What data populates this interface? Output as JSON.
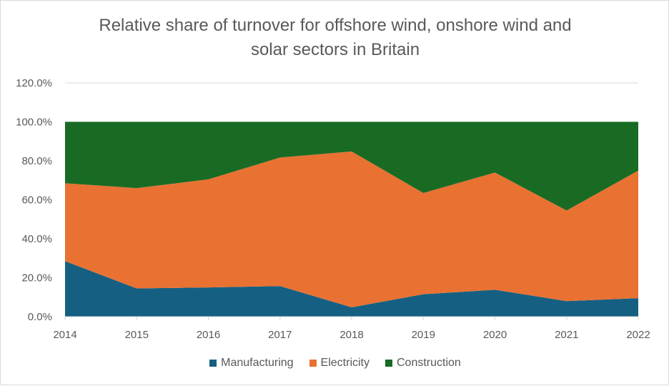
{
  "chart_data": {
    "type": "area",
    "stacked": true,
    "title_lines": [
      "Relative share of turnover for offshore wind, onshore wind and",
      "solar sectors in Britain"
    ],
    "title": "Relative share of turnover for offshore wind, onshore wind and solar sectors in Britain",
    "categories": [
      "2014",
      "2015",
      "2016",
      "2017",
      "2018",
      "2019",
      "2020",
      "2021",
      "2022"
    ],
    "series": [
      {
        "name": "Manufacturing",
        "color": "#156082",
        "values": [
          28.5,
          14.5,
          15.0,
          15.7,
          4.8,
          11.5,
          13.8,
          8.0,
          9.5
        ]
      },
      {
        "name": "Electricity",
        "color": "#E97132",
        "values": [
          40.0,
          51.5,
          55.5,
          66.0,
          80.0,
          52.0,
          60.2,
          46.5,
          65.5
        ]
      },
      {
        "name": "Construction",
        "color": "#196B24",
        "values": [
          31.5,
          34.0,
          29.5,
          18.3,
          15.2,
          36.5,
          26.0,
          45.5,
          25.0
        ]
      }
    ],
    "ylim": [
      0,
      120
    ],
    "yticks": [
      "0.0%",
      "20.0%",
      "40.0%",
      "60.0%",
      "80.0%",
      "100.0%",
      "120.0%"
    ],
    "ytick_values": [
      0,
      20,
      40,
      60,
      80,
      100,
      120
    ],
    "grid": true,
    "legend_position": "bottom"
  }
}
